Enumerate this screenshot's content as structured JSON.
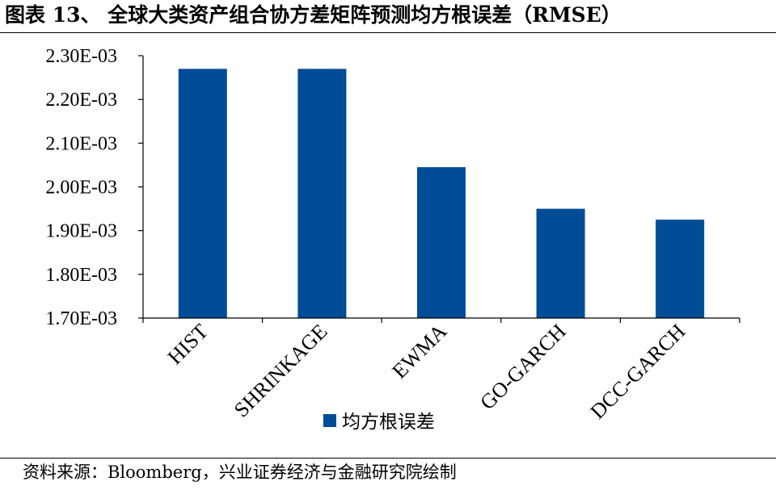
{
  "figure": {
    "title": "图表 13、  全球大类资产组合协方差矩阵预测均方根误差（RMSE）",
    "source": "资料来源：Bloomberg，兴业证券经济与金融研究院绘制"
  },
  "chart_data": {
    "type": "bar",
    "categories": [
      "HIST",
      "SHRINKAGE",
      "EWMA",
      "GO-GARCH",
      "DCC-GARCH"
    ],
    "series": [
      {
        "name": "均方根误差",
        "color": "#004C97",
        "values": [
          0.00227,
          0.00227,
          0.002045,
          0.00195,
          0.001925
        ]
      }
    ],
    "ylim": [
      0.0017,
      0.0023
    ],
    "yticks": [
      0.0017,
      0.0018,
      0.0019,
      0.002,
      0.0021,
      0.0022,
      0.0023
    ],
    "ytick_labels": [
      "1.70E-03",
      "1.80E-03",
      "1.90E-03",
      "2.00E-03",
      "2.10E-03",
      "2.20E-03",
      "2.30E-03"
    ],
    "xlabel": "",
    "ylabel": "",
    "grid": false,
    "legend_position": "bottom-center"
  }
}
